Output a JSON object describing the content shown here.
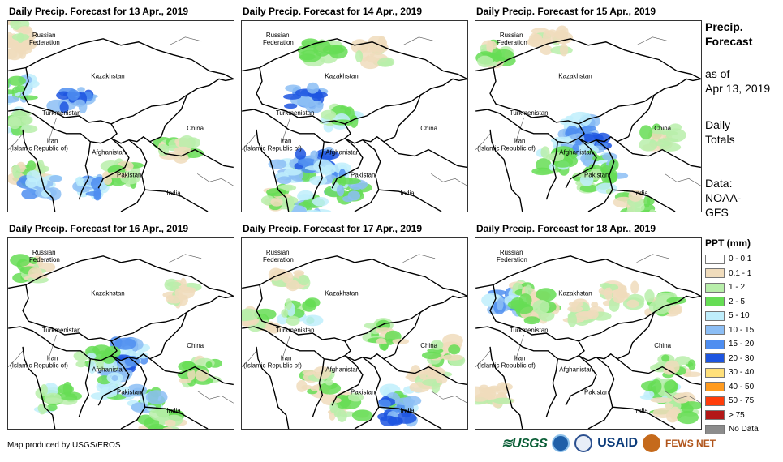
{
  "panels": [
    {
      "title": "Daily Precip. Forecast for 13 Apr., 2019"
    },
    {
      "title": "Daily Precip. Forecast for 14 Apr., 2019"
    },
    {
      "title": "Daily Precip. Forecast for 15 Apr., 2019"
    },
    {
      "title": "Daily Precip. Forecast for 16 Apr., 2019"
    },
    {
      "title": "Daily Precip. Forecast for 17 Apr., 2019"
    },
    {
      "title": "Daily Precip. Forecast for 18 Apr., 2019"
    }
  ],
  "map_labels": {
    "russia1": "Russian",
    "russia2": "Federation",
    "kazakhstan": "Kazakhstan",
    "turkmenistan": "Turkmenistan",
    "china": "China",
    "iran1": "Iran",
    "iran2": "(Islamic Republic of)",
    "afghanistan": "Afghanistan",
    "pakistan": "Pakistan",
    "india": "India"
  },
  "side": {
    "title1": "Precip.",
    "title2": "Forecast",
    "asof1": "as of",
    "asof2": "Apr 13, 2019",
    "daily1": "Daily",
    "daily2": "Totals",
    "data1": "Data:",
    "data2": "NOAA-",
    "data3": "GFS"
  },
  "legend": {
    "title": "PPT (mm)",
    "items": [
      {
        "label": "0 - 0.1",
        "color": "#ffffff"
      },
      {
        "label": "0.1 - 1",
        "color": "#f0dcbc"
      },
      {
        "label": "1 - 2",
        "color": "#b8eeaa"
      },
      {
        "label": "2 - 5",
        "color": "#66dd55"
      },
      {
        "label": "5 - 10",
        "color": "#bfeefc"
      },
      {
        "label": "10 - 15",
        "color": "#8cbef5"
      },
      {
        "label": "15 - 20",
        "color": "#4f8ef0"
      },
      {
        "label": "20 - 30",
        "color": "#1d55e0"
      },
      {
        "label": "30 - 40",
        "color": "#ffe07a"
      },
      {
        "label": "40 - 50",
        "color": "#ff9b1f"
      },
      {
        "label": "50 - 75",
        "color": "#ff3d0a"
      },
      {
        "label": "> 75",
        "color": "#b31717"
      },
      {
        "label": "No Data",
        "color": "#8c8c8c"
      }
    ]
  },
  "footer": "Map produced by USGS/EROS",
  "logos": {
    "usgs": "≋USGS",
    "usaid": "USAID",
    "fews": "FEWS NET"
  }
}
